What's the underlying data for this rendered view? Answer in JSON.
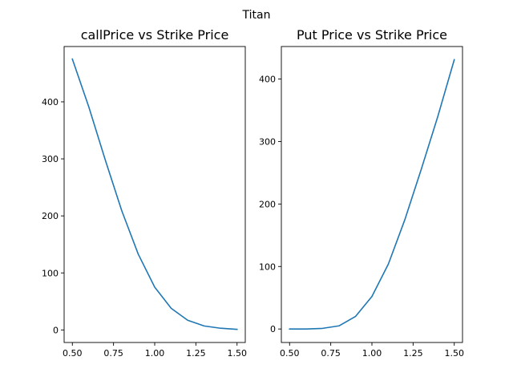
{
  "figure": {
    "title": "Titan"
  },
  "chart_data": [
    {
      "type": "line",
      "title": "callPrice vs Strike Price",
      "xlabel": "",
      "ylabel": "",
      "x": [
        0.5,
        0.6,
        0.7,
        0.8,
        0.9,
        1.0,
        1.1,
        1.2,
        1.3,
        1.4,
        1.5
      ],
      "series": [
        {
          "values": [
            475,
            391,
            298,
            209,
            133,
            75,
            38,
            17,
            7,
            3,
            1
          ],
          "color": "#1f77b4"
        }
      ],
      "xlim": [
        0.45,
        1.55
      ],
      "ylim": [
        -22,
        497
      ],
      "xticks": [
        0.5,
        0.75,
        1.0,
        1.25,
        1.5
      ],
      "xtick_labels": [
        "0.50",
        "0.75",
        "1.00",
        "1.25",
        "1.50"
      ],
      "yticks": [
        0,
        100,
        200,
        300,
        400
      ],
      "ytick_labels": [
        "0",
        "100",
        "200",
        "300",
        "400"
      ],
      "grid": false
    },
    {
      "type": "line",
      "title": "Put Price vs Strike Price",
      "xlabel": "",
      "ylabel": "",
      "x": [
        0.5,
        0.6,
        0.7,
        0.8,
        0.9,
        1.0,
        1.1,
        1.2,
        1.3,
        1.4,
        1.5
      ],
      "series": [
        {
          "values": [
            0,
            0,
            1,
            5,
            20,
            52,
            104,
            175,
            256,
            340,
            431
          ],
          "color": "#1f77b4"
        }
      ],
      "xlim": [
        0.45,
        1.55
      ],
      "ylim": [
        -21.6,
        452
      ],
      "xticks": [
        0.5,
        0.75,
        1.0,
        1.25,
        1.5
      ],
      "xtick_labels": [
        "0.50",
        "0.75",
        "1.00",
        "1.25",
        "1.50"
      ],
      "yticks": [
        0,
        100,
        200,
        300,
        400
      ],
      "ytick_labels": [
        "0",
        "100",
        "200",
        "300",
        "400"
      ],
      "grid": false
    }
  ]
}
